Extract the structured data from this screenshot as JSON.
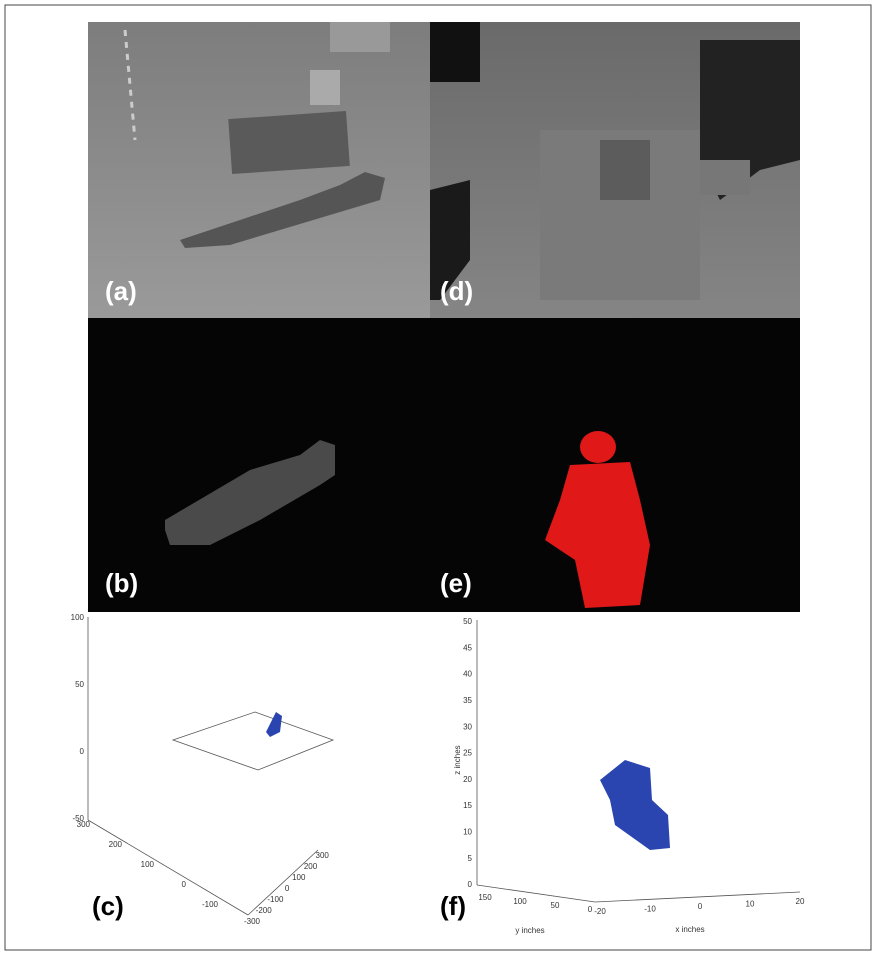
{
  "panels": {
    "a": {
      "label": "(a)"
    },
    "b": {
      "label": "(b)"
    },
    "c": {
      "label": "(c)",
      "z_ticks": [
        "100",
        "50",
        "0",
        "-50"
      ],
      "y_ticks": [
        "300",
        "200",
        "100",
        "0",
        "-100"
      ],
      "x_ticks": [
        "-300",
        "-200",
        "-100",
        "0",
        "100",
        "200",
        "300"
      ]
    },
    "d": {
      "label": "(d)"
    },
    "e": {
      "label": "(e)"
    },
    "f": {
      "label": "(f)",
      "z_axis_label": "z inches",
      "z_ticks": [
        "0",
        "5",
        "10",
        "15",
        "20",
        "25",
        "30",
        "35",
        "40",
        "45",
        "50"
      ],
      "y_axis_label": "y inches",
      "y_ticks": [
        "150",
        "100",
        "50",
        "0"
      ],
      "x_axis_label": "x inches",
      "x_ticks": [
        "-20",
        "-10",
        "0",
        "10",
        "20"
      ]
    }
  }
}
